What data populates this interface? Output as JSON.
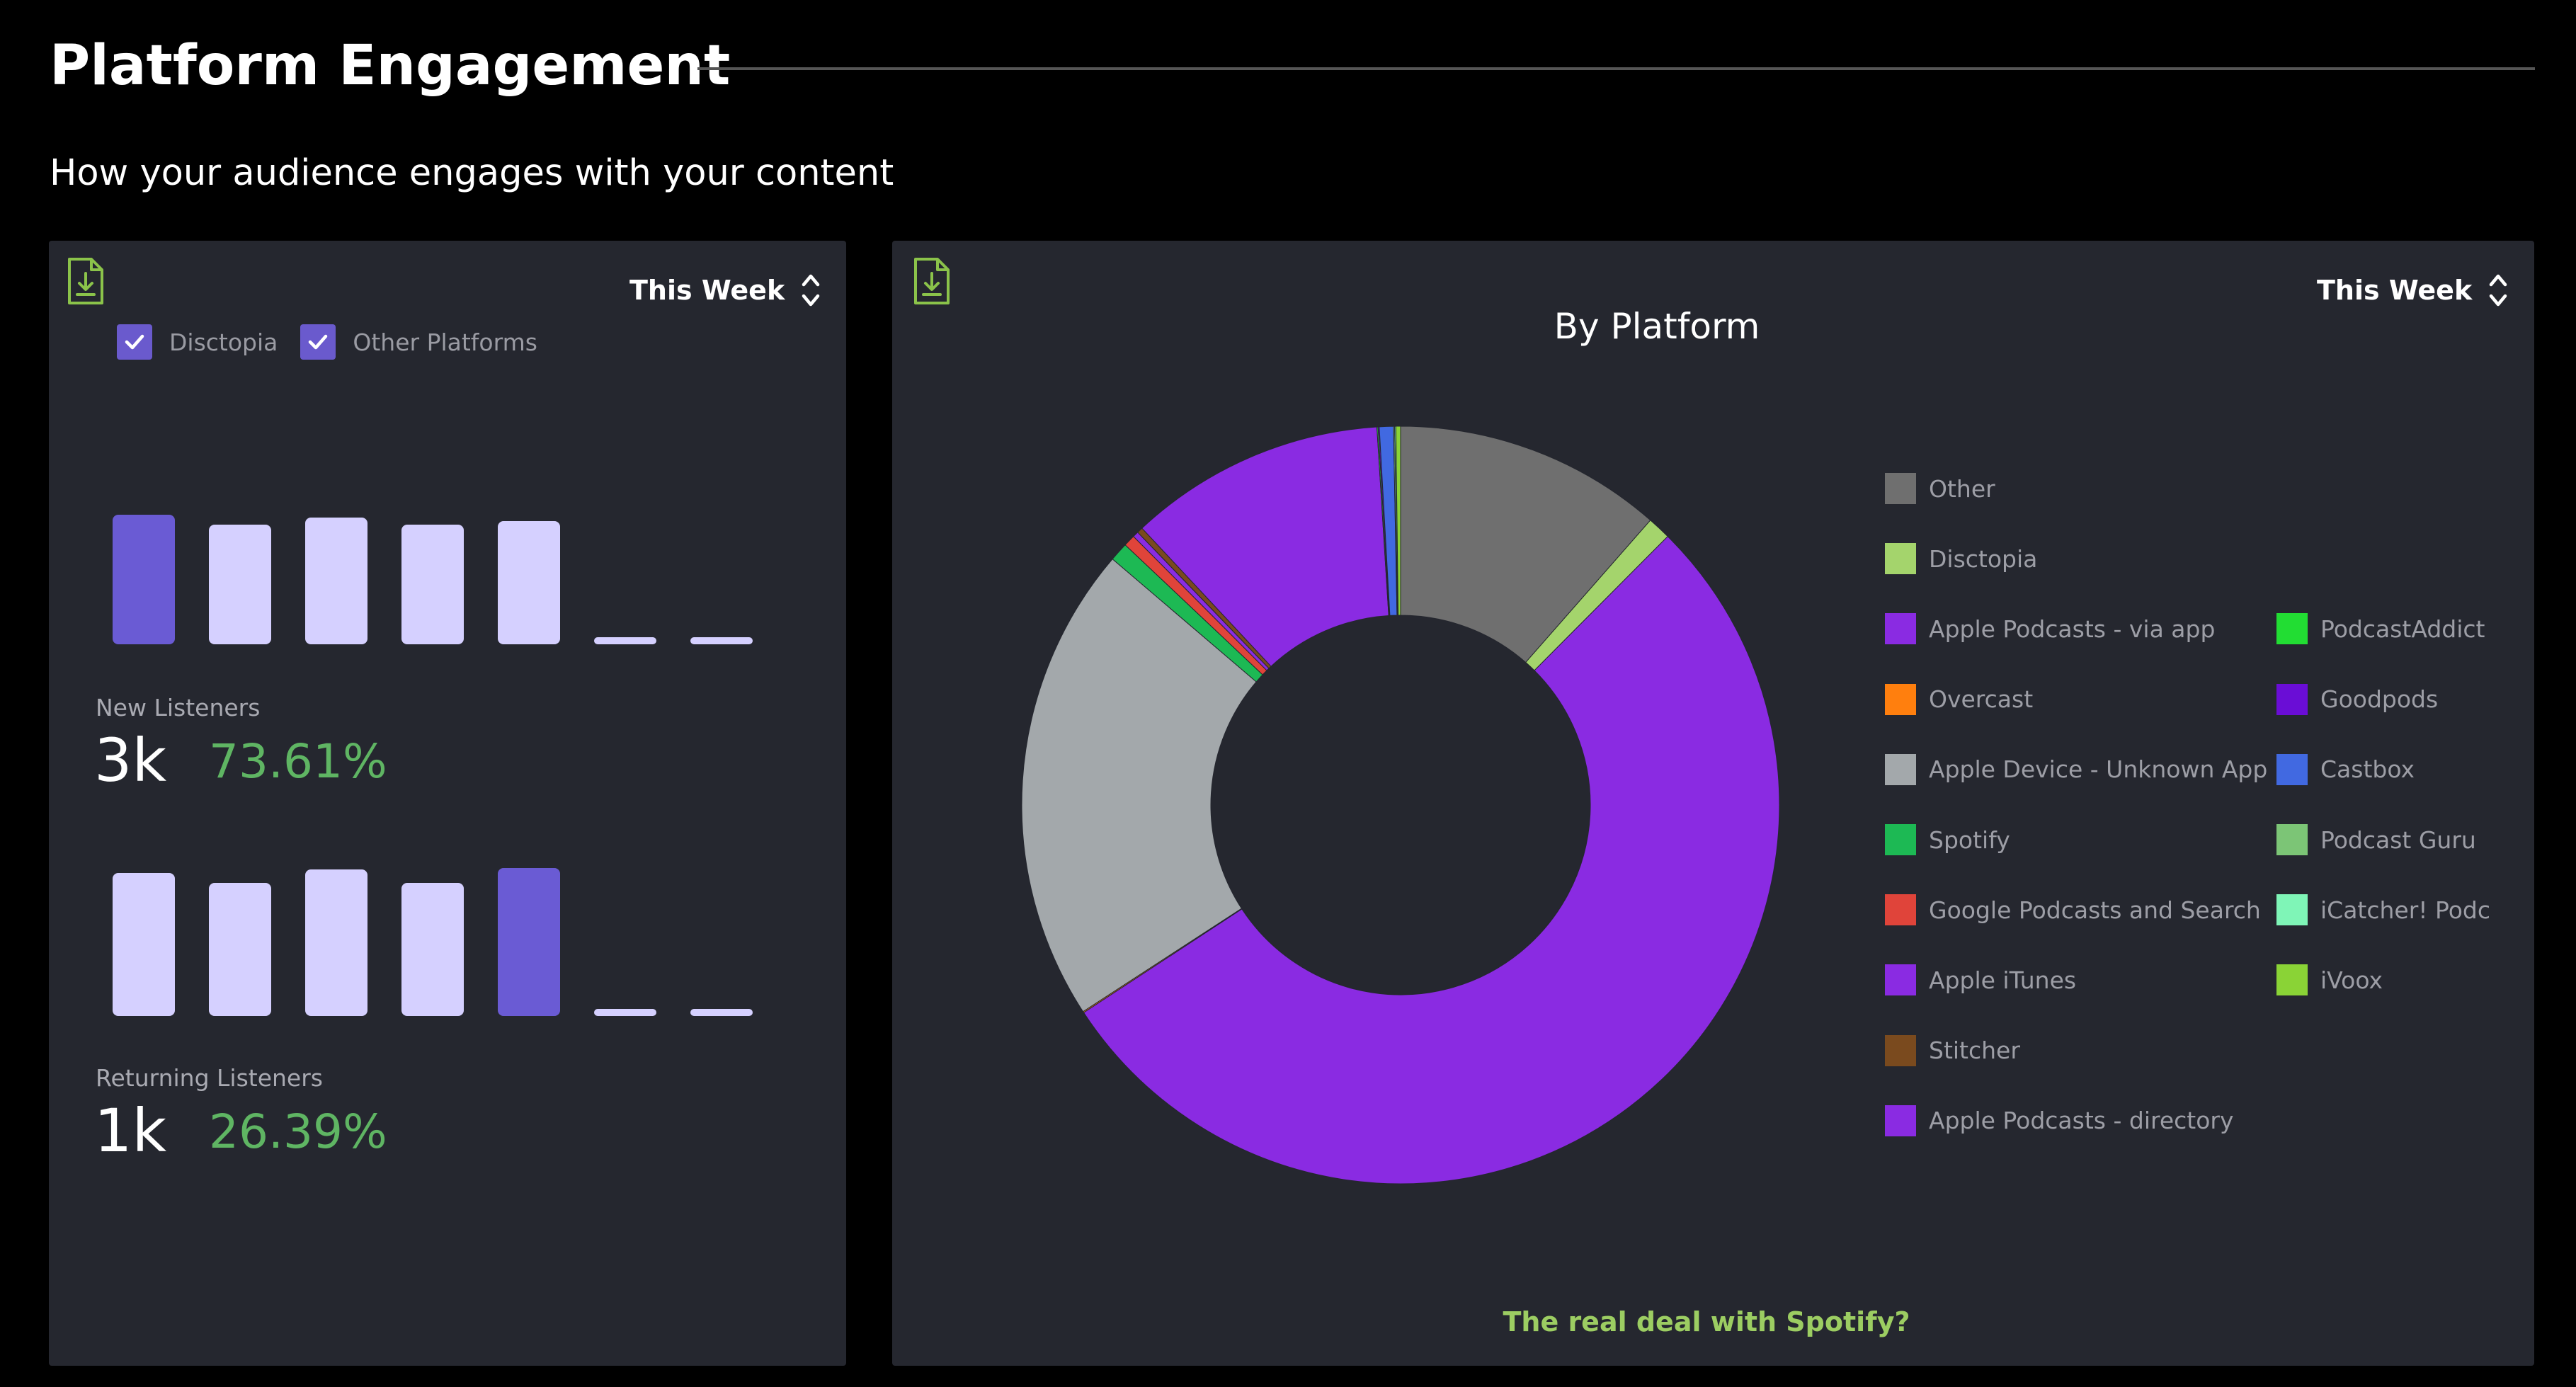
{
  "page": {
    "title": "Platform Engagement",
    "subtitle": "How your audience engages with your content"
  },
  "left_card": {
    "download_icon": "download-file-icon",
    "period": "This Week",
    "period_icon": "chevron-up-down-icon",
    "checkboxes": [
      {
        "label": "Disctopia",
        "checked": true
      },
      {
        "label": "Other Platforms",
        "checked": true
      }
    ],
    "new_listeners": {
      "label": "New Listeners",
      "value": "3k",
      "percent": "73.61%",
      "bar_levels": [
        0.78,
        0.72,
        0.76,
        0.72,
        0.74,
        0,
        0
      ],
      "highlight_index": 0
    },
    "returning_listeners": {
      "label": "Returning Listeners",
      "value": "1k",
      "percent": "26.39%",
      "bar_levels": [
        0.86,
        0.8,
        0.88,
        0.8,
        0.89,
        0,
        0
      ],
      "highlight_index": 4
    }
  },
  "right_card": {
    "download_icon": "download-file-icon",
    "period": "This Week",
    "period_icon": "chevron-up-down-icon",
    "footer_link": "The real deal with Spotify?"
  },
  "chart_data": {
    "type": "pie",
    "title": "By Platform",
    "donut": true,
    "legend_position": "right",
    "series": [
      {
        "name": "Other",
        "value": 11.5,
        "color": "#6f6f6f"
      },
      {
        "name": "Disctopia",
        "value": 1.0,
        "color": "#a4d46c"
      },
      {
        "name": "Apple Podcasts - via app",
        "value": 53.5,
        "color": "#8a2be2"
      },
      {
        "name": "Overcast",
        "value": 0.05,
        "color": "#ff7f0e"
      },
      {
        "name": "Apple Device - Unknown App",
        "value": 20.5,
        "color": "#a3a8ab"
      },
      {
        "name": "Spotify",
        "value": 0.8,
        "color": "#1db954"
      },
      {
        "name": "Google Podcasts and Search",
        "value": 0.5,
        "color": "#e0443a"
      },
      {
        "name": "Apple iTunes",
        "value": 0.25,
        "color": "#8a2be2"
      },
      {
        "name": "Stitcher",
        "value": 0.25,
        "color": "#7a4a1e"
      },
      {
        "name": "Apple Podcasts - directory",
        "value": 11.0,
        "color": "#8a2be2"
      },
      {
        "name": "PodcastAddict",
        "value": 0.05,
        "color": "#22dd33"
      },
      {
        "name": "Goodpods",
        "value": 0.05,
        "color": "#6a0dd6"
      },
      {
        "name": "Castbox",
        "value": 0.6,
        "color": "#4169e1"
      },
      {
        "name": "Podcast Guru",
        "value": 0.05,
        "color": "#7cc576"
      },
      {
        "name": "iCatcher! Podcast Player",
        "value": 0.05,
        "color": "#7ff5b7"
      },
      {
        "name": "iVoox",
        "value": 0.2,
        "color": "#8ad336"
      }
    ],
    "legend_labels": [
      "Other",
      "Disctopia",
      "Apple Podcasts - via app",
      "Overcast",
      "Apple Device - Unknown App",
      "Spotify",
      "Google Podcasts and Search",
      "Apple iTunes",
      "Stitcher",
      "Apple Podcasts - directory",
      "PodcastAddict",
      "Goodpods",
      "Castbox",
      "Podcast Guru",
      "iCatcher! Podc",
      "iVoox"
    ]
  }
}
